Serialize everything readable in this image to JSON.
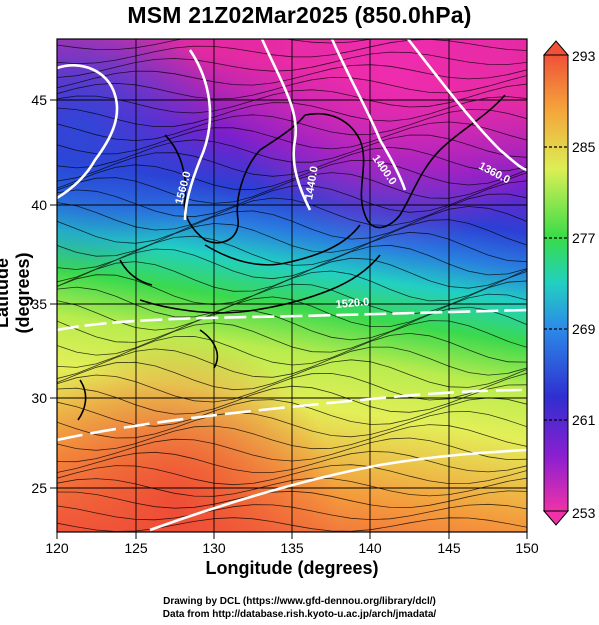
{
  "title": "MSM 21Z02Mar2025 (850.0hPa)",
  "axes": {
    "xlabel": "Longitude (degrees)",
    "ylabel": "Latitude  (degrees)",
    "xticks": [
      "120",
      "125",
      "130",
      "135",
      "140",
      "145",
      "150"
    ],
    "yticks": [
      "25",
      "30",
      "35",
      "40",
      "45"
    ],
    "xlim": [
      120,
      150
    ],
    "ylim": [
      22.4,
      47.6
    ]
  },
  "colorbar": {
    "ticks": [
      "293",
      "285",
      "277",
      "269",
      "261",
      "253"
    ],
    "range": [
      253,
      293
    ]
  },
  "contours": [
    "1560.0",
    "1440.0",
    "1400.0",
    "1360.0",
    "1520.0"
  ],
  "credits": {
    "line1": "Drawing by DCL (https://www.gfd-dennou.org/library/dcl/)",
    "line2": "Data from http://database.rish.kyoto-u.ac.jp/arch/jmadata/"
  },
  "colors": {
    "warm": "#e8503a",
    "orange": "#f4a23c",
    "yellow": "#e7ef5a",
    "green": "#33d94a",
    "cyan": "#1ec8e0",
    "blue": "#2a3ad6",
    "purple": "#8a1ccf",
    "magenta": "#e02aa0"
  }
}
